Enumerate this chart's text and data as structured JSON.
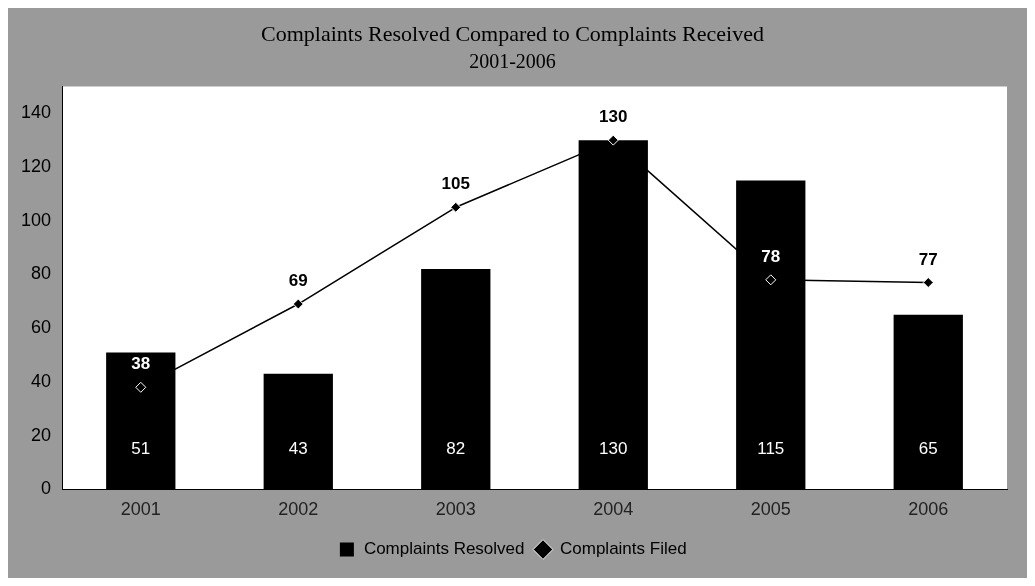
{
  "chart_data": {
    "type": "bar",
    "title": "Complaints Resolved Compared to Complaints Received",
    "subtitle": "2001-2006",
    "categories": [
      "2001",
      "2002",
      "2003",
      "2004",
      "2005",
      "2006"
    ],
    "series": [
      {
        "name": "Complaints Resolved",
        "color": "#000000",
        "values": [
          51,
          43,
          82,
          130,
          115,
          65
        ]
      },
      {
        "name": "Complaints Filed",
        "type": "line",
        "color": "#000000",
        "values": [
          38,
          69,
          105,
          130,
          78,
          77
        ]
      }
    ],
    "ylim": [
      0,
      150
    ],
    "yticks": [
      0,
      20,
      40,
      60,
      80,
      100,
      120,
      140
    ],
    "grid": false,
    "legend": "bottom",
    "marker": "diamond",
    "data_labels": true
  }
}
